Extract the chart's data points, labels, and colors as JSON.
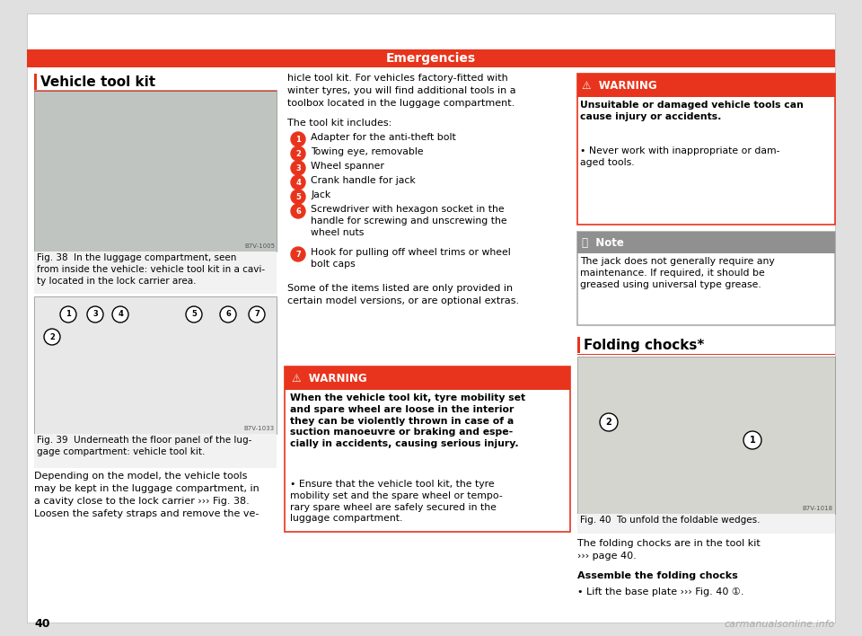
{
  "page_bg": "#e0e0e0",
  "content_bg": "#ffffff",
  "header_bg": "#e8341c",
  "header_text": "Emergencies",
  "header_text_color": "#ffffff",
  "header_font_size": 10,
  "page_number": "40",
  "section1_title": "Vehicle tool kit",
  "fig38_caption_bold": "Fig. 38",
  "fig38_caption_rest": "  In the luggage compartment, seen\nfrom inside the vehicle: vehicle tool kit in a cavi-\nty located in the lock carrier area.",
  "fig39_caption_bold": "Fig. 39",
  "fig39_caption_rest": "  Underneath the floor panel of the lug-\ngage compartment: vehicle tool kit.",
  "left_body_text": "Depending on the model, the vehicle tools\nmay be kept in the luggage compartment, in\na cavity close to the lock carrier ››› Fig. 38.\nLoosen the safety straps and remove the ve-",
  "mid_text1": "hicle tool kit. For vehicles factory-fitted with\nwinter tyres, you will find additional tools in a\ntoolbox located in the luggage compartment.",
  "mid_text2": "The tool kit includes:",
  "tool_items": [
    "Adapter for the anti-theft bolt",
    "Towing eye, removable",
    "Wheel spanner",
    "Crank handle for jack",
    "Jack",
    "Screwdriver with hexagon socket in the\nhandle for screwing and unscrewing the\nwheel nuts",
    "Hook for pulling off wheel trims or wheel\nbolt caps"
  ],
  "mid_text3": "Some of the items listed are only provided in\ncertain model versions, or are optional extras.",
  "warning1_title": "⚠  WARNING",
  "warning1_bold": "When the vehicle tool kit, tyre mobility set\nand spare wheel are loose in the interior\nthey can be violently thrown in case of a\nsuction manoeuvre or braking and espe-\ncially in accidents, causing serious injury.",
  "warning1_bullet": "Ensure that the vehicle tool kit, the tyre\nmobility set and the spare wheel or tempo-\nrary spare wheel are safely secured in the\nluggage compartment.",
  "warning2_title": "⚠  WARNING",
  "warning2_bold": "Unsuitable or damaged vehicle tools can\ncause injury or accidents.",
  "warning2_bullet": "Never work with inappropriate or dam-\naged tools.",
  "note_title": "ⓘ  Note",
  "note_text": "The jack does not generally require any\nmaintenance. If required, it should be\ngreased using universal type grease.",
  "section2_title": "Folding chocks*",
  "fig40_caption_bold": "Fig. 40",
  "fig40_caption_rest": "  To unfold the foldable wedges.",
  "right_text1": "The folding chocks are in the tool kit\n››› page 40.",
  "right_text2": "Assemble the folding chocks",
  "right_bullet1": "Lift the base plate ››› Fig. 40 ①.",
  "warning_bg": "#e8341c",
  "warning_text_color": "#ffffff",
  "note_bg": "#909090",
  "note_text_color": "#ffffff",
  "caption_fontsize": 7.5,
  "body_fontsize": 8,
  "small_fontsize": 7.8,
  "title_fontsize": 11
}
